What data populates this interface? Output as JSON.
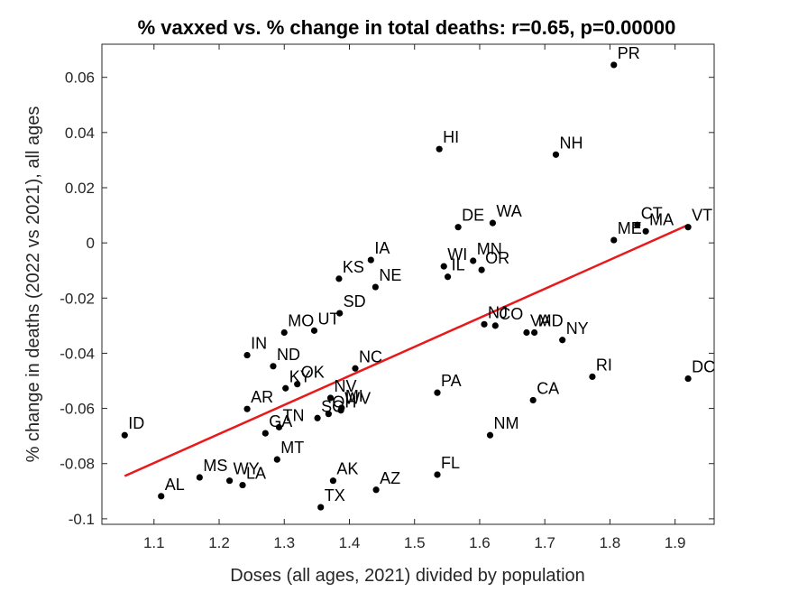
{
  "chart_data": {
    "type": "scatter",
    "title": "% vaxxed vs. % change in total deaths: r=0.65, p=0.00000",
    "xlabel": "Doses (all ages, 2021) divided by population",
    "ylabel": "% change in deaths (2022 vs 2021), all ages",
    "xlim": [
      1.02,
      1.96
    ],
    "ylim": [
      -0.102,
      0.072
    ],
    "xticks": [
      1.1,
      1.2,
      1.3,
      1.4,
      1.5,
      1.6,
      1.7,
      1.8,
      1.9
    ],
    "xtick_labels": [
      "1.1",
      "1.2",
      "1.3",
      "1.4",
      "1.5",
      "1.6",
      "1.7",
      "1.8",
      "1.9"
    ],
    "yticks": [
      -0.1,
      -0.08,
      -0.06,
      -0.04,
      -0.02,
      0,
      0.02,
      0.04,
      0.06
    ],
    "ytick_labels": [
      "-0.1",
      "-0.08",
      "-0.06",
      "-0.04",
      "-0.02",
      "0",
      "0.02",
      "0.04",
      "0.06"
    ],
    "grid": false,
    "marker_color": "#000000",
    "fit_line": {
      "color": "#e8191b",
      "x": [
        1.055,
        1.92
      ],
      "y": [
        -0.0845,
        0.0065
      ]
    },
    "points": [
      {
        "label": "PR",
        "x": 1.806,
        "y": 0.0645
      },
      {
        "label": "HI",
        "x": 1.538,
        "y": 0.034
      },
      {
        "label": "NH",
        "x": 1.717,
        "y": 0.032
      },
      {
        "label": "DE",
        "x": 1.567,
        "y": 0.0057
      },
      {
        "label": "WA",
        "x": 1.62,
        "y": 0.0072
      },
      {
        "label": "CT",
        "x": 1.842,
        "y": 0.0065
      },
      {
        "label": "MA",
        "x": 1.855,
        "y": 0.0042
      },
      {
        "label": "ME",
        "x": 1.806,
        "y": 0.001
      },
      {
        "label": "VT",
        "x": 1.92,
        "y": 0.0057
      },
      {
        "label": "IA",
        "x": 1.433,
        "y": -0.0062
      },
      {
        "label": "MN",
        "x": 1.59,
        "y": -0.0065
      },
      {
        "label": "WI",
        "x": 1.545,
        "y": -0.0085
      },
      {
        "label": "IL",
        "x": 1.551,
        "y": -0.0123
      },
      {
        "label": "OR",
        "x": 1.603,
        "y": -0.0098
      },
      {
        "label": "KS",
        "x": 1.384,
        "y": -0.013
      },
      {
        "label": "NE",
        "x": 1.44,
        "y": -0.016
      },
      {
        "label": "SD",
        "x": 1.385,
        "y": -0.0255
      },
      {
        "label": "NJ",
        "x": 1.607,
        "y": -0.0295
      },
      {
        "label": "CO",
        "x": 1.624,
        "y": -0.03
      },
      {
        "label": "VA",
        "x": 1.672,
        "y": -0.0325
      },
      {
        "label": "MD",
        "x": 1.684,
        "y": -0.0325
      },
      {
        "label": "NY",
        "x": 1.727,
        "y": -0.0352
      },
      {
        "label": "MO",
        "x": 1.3,
        "y": -0.0325
      },
      {
        "label": "UT",
        "x": 1.346,
        "y": -0.0318
      },
      {
        "label": "IN",
        "x": 1.243,
        "y": -0.0407
      },
      {
        "label": "ND",
        "x": 1.283,
        "y": -0.0447
      },
      {
        "label": "NC",
        "x": 1.409,
        "y": -0.0455
      },
      {
        "label": "OK",
        "x": 1.32,
        "y": -0.0512
      },
      {
        "label": "KY",
        "x": 1.302,
        "y": -0.0527
      },
      {
        "label": "PA",
        "x": 1.535,
        "y": -0.0543
      },
      {
        "label": "AR",
        "x": 1.243,
        "y": -0.0602
      },
      {
        "label": "NV",
        "x": 1.371,
        "y": -0.0562
      },
      {
        "label": "MI",
        "x": 1.388,
        "y": -0.0598
      },
      {
        "label": "WV",
        "x": 1.387,
        "y": -0.0607
      },
      {
        "label": "OH",
        "x": 1.368,
        "y": -0.062
      },
      {
        "label": "SC",
        "x": 1.351,
        "y": -0.0635
      },
      {
        "label": "TN",
        "x": 1.292,
        "y": -0.0668
      },
      {
        "label": "GA",
        "x": 1.271,
        "y": -0.069
      },
      {
        "label": "ID",
        "x": 1.055,
        "y": -0.0697
      },
      {
        "label": "NM",
        "x": 1.616,
        "y": -0.0697
      },
      {
        "label": "CA",
        "x": 1.682,
        "y": -0.057
      },
      {
        "label": "RI",
        "x": 1.773,
        "y": -0.0485
      },
      {
        "label": "DC",
        "x": 1.92,
        "y": -0.0492
      },
      {
        "label": "MT",
        "x": 1.289,
        "y": -0.0785
      },
      {
        "label": "WY",
        "x": 1.216,
        "y": -0.0862
      },
      {
        "label": "MS",
        "x": 1.17,
        "y": -0.085
      },
      {
        "label": "LA",
        "x": 1.236,
        "y": -0.0878
      },
      {
        "label": "AL",
        "x": 1.111,
        "y": -0.0918
      },
      {
        "label": "AK",
        "x": 1.375,
        "y": -0.0862
      },
      {
        "label": "FL",
        "x": 1.535,
        "y": -0.084
      },
      {
        "label": "AZ",
        "x": 1.441,
        "y": -0.0895
      },
      {
        "label": "TX",
        "x": 1.356,
        "y": -0.0958
      }
    ]
  }
}
